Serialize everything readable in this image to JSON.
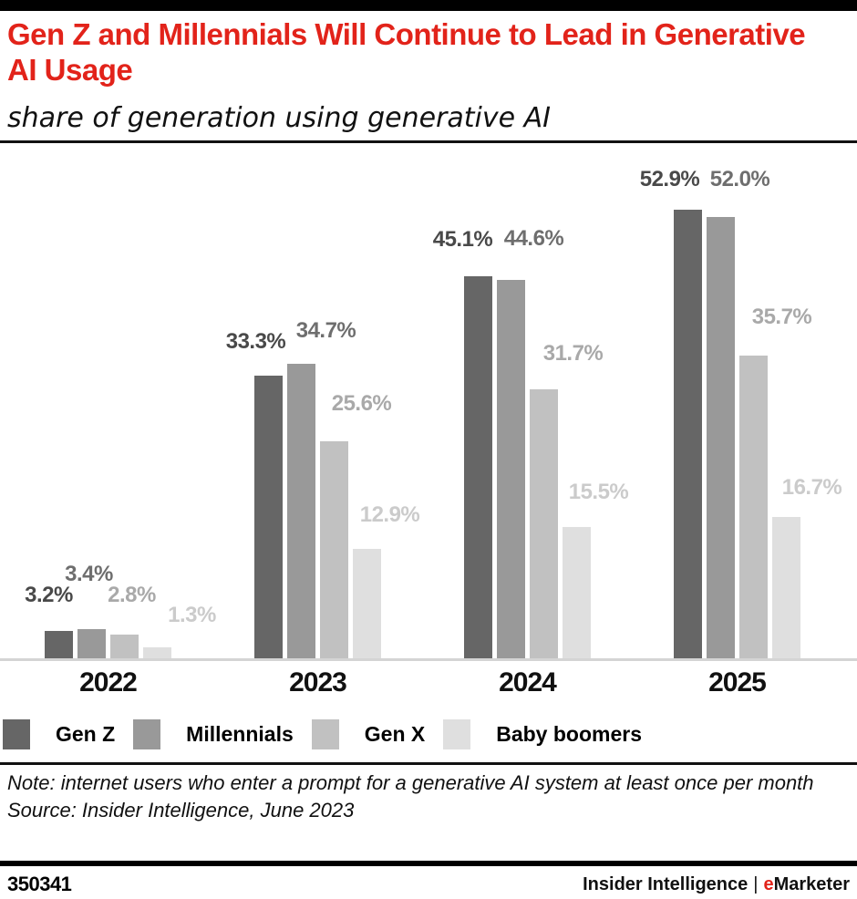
{
  "header": {
    "title": "Gen Z and Millennials Will Continue to Lead in Generative AI Usage",
    "subtitle": "share of generation using generative AI"
  },
  "chart_data": {
    "type": "bar",
    "title": "Gen Z and Millennials Will Continue to Lead in Generative AI Usage",
    "subtitle": "share of generation using generative AI",
    "categories": [
      "2022",
      "2023",
      "2024",
      "2025"
    ],
    "series": [
      {
        "name": "Gen Z",
        "color": "#666666",
        "label_color": "#494949",
        "values": [
          3.2,
          33.3,
          45.1,
          52.9
        ]
      },
      {
        "name": "Millennials",
        "color": "#999999",
        "label_color": "#6e6e6e",
        "values": [
          3.4,
          34.7,
          44.6,
          52.0
        ]
      },
      {
        "name": "Gen X",
        "color": "#c1c1c1",
        "label_color": "#a9a9a9",
        "values": [
          2.8,
          25.6,
          31.7,
          35.7
        ]
      },
      {
        "name": "Baby boomers",
        "color": "#dfdfdf",
        "label_color": "#cbcbcb",
        "values": [
          1.3,
          12.9,
          15.5,
          16.7
        ]
      }
    ],
    "value_suffix": "%",
    "value_decimals": 1,
    "xlabel": "",
    "ylabel": "",
    "ylim": [
      0,
      60
    ],
    "grid": false,
    "axis_line_color": "#d4d4d4",
    "legend_position": "bottom",
    "accent_color": "#e2231a"
  },
  "footnote": {
    "note": "Note: internet users who enter a prompt for a generative AI system at least once per month",
    "source": "Source: Insider Intelligence, June 2023"
  },
  "footer": {
    "chart_id": "350341",
    "brand_name": "Insider Intelligence",
    "brand_separator": "|",
    "brand_e": "e",
    "brand_rest": "Marketer"
  }
}
